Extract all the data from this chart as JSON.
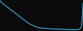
{
  "values": [
    2200,
    2100,
    2050,
    2000,
    1950,
    1900,
    1850,
    1800,
    1750,
    1700,
    1650,
    1600,
    1550,
    1500,
    1450,
    1400,
    1350,
    1300,
    1250,
    1200,
    1150,
    1100,
    1050,
    1000,
    950,
    900,
    850,
    800,
    750,
    700,
    650,
    600,
    560,
    520,
    490,
    460,
    430,
    400,
    370,
    340,
    310,
    290,
    270,
    250,
    240,
    230,
    220,
    210,
    200,
    195,
    190,
    185,
    180,
    175,
    170,
    165,
    160,
    155,
    150,
    148,
    146,
    144,
    142,
    140,
    138,
    136,
    134,
    132,
    130,
    128,
    126,
    124,
    122,
    120,
    118,
    116,
    114,
    112,
    110,
    108,
    106,
    104,
    102,
    100,
    102,
    104,
    108,
    115,
    125,
    140,
    180,
    300,
    800,
    2000
  ],
  "line_color": "#3b9fd1",
  "background_color": "#0a0a0a",
  "linewidth": 1.0
}
